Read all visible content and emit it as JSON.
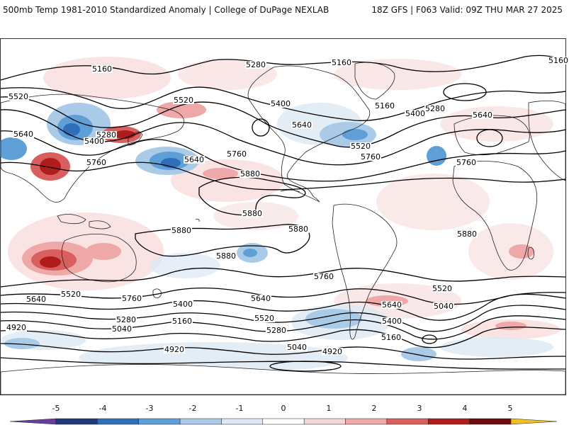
{
  "header": {
    "left": "500mb Temp 1981-2010 Standardized Anomaly | College of DuPage NEXLAB",
    "right": "18Z GFS | F063 Valid: 09Z THU MAR 27 2025"
  },
  "contour_labels": [
    "5160",
    "5280",
    "5160",
    "5160",
    "5520",
    "5520",
    "5400",
    "5160",
    "5280",
    "5640",
    "5640",
    "5280",
    "5400",
    "5640",
    "5400",
    "5520",
    "5760",
    "5760",
    "5640",
    "5760",
    "5880",
    "5880",
    "5880",
    "5880",
    "5880",
    "5880",
    "5760",
    "5760",
    "5640",
    "5520",
    "5760",
    "5640",
    "5520",
    "5640",
    "5400",
    "5280",
    "5040",
    "5160",
    "5520",
    "5280",
    "5400",
    "5040",
    "4920",
    "5040",
    "4920",
    "5160",
    "4920"
  ],
  "colorbar": {
    "ticks": [
      "-5",
      "-4",
      "-3",
      "-2",
      "-1",
      "0",
      "1",
      "2",
      "3",
      "4",
      "5"
    ],
    "colors": [
      "#6a3d9a",
      "#1f3a7a",
      "#2f6fb8",
      "#5e9fd8",
      "#a9cbe8",
      "#dce8f3",
      "#ffffff",
      "#f6d7d7",
      "#eea8a8",
      "#d95f5f",
      "#b01c1c",
      "#6e0a0a",
      "#f0c020"
    ]
  }
}
